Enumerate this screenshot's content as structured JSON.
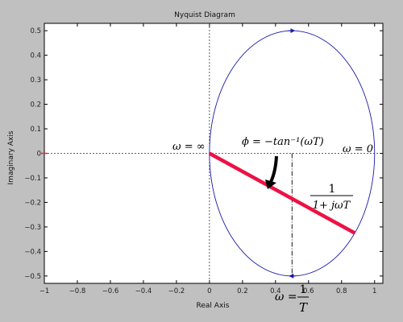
{
  "chart_data": {
    "type": "line",
    "title": "Nyquist Diagram",
    "xlabel": "Real Axis",
    "ylabel": "Imaginary Axis",
    "xlim": [
      -1,
      1.05
    ],
    "ylim": [
      -0.53,
      0.53
    ],
    "x_ticks": [
      -1,
      -0.8,
      -0.6,
      -0.4,
      -0.2,
      0,
      0.2,
      0.4,
      0.6,
      0.8,
      1
    ],
    "x_tick_labels": [
      "−1",
      "−0.8",
      "−0.6",
      "−0.4",
      "−0.2",
      "0",
      "0.2",
      "0.4",
      "0.6",
      "0.8",
      "1"
    ],
    "y_ticks": [
      0.5,
      0.4,
      0.3,
      0.2,
      0.1,
      0,
      -0.1,
      -0.2,
      -0.3,
      -0.4,
      -0.5
    ],
    "y_tick_labels": [
      "0.5",
      "0.4",
      "0.3",
      "0.2",
      "0.1",
      "0",
      "−0.1",
      "−0.2",
      "−0.3",
      "−0.4",
      "−0.5"
    ],
    "grid": false,
    "series": [
      {
        "kind": "circle",
        "center": [
          0.5,
          0
        ],
        "radius": 0.5,
        "color": "#1a1aaa"
      }
    ],
    "critical_point": {
      "x": -1,
      "y": 0,
      "color": "#ff2020"
    },
    "phasor": {
      "from": [
        0,
        0
      ],
      "to": [
        0.88,
        -0.325
      ],
      "color": "#ee1144"
    },
    "dashed_axes": {
      "color": "#333333"
    },
    "annotations": {
      "omega_inf": "ω = ∞",
      "omega_zero": "ω = 0",
      "phase": "ϕ = −tan⁻¹(ωT)",
      "magnitude_num": "1",
      "magnitude_den": "1+ jωT",
      "omega_eq": "ω =",
      "omega_num": "1",
      "omega_den": "T"
    }
  }
}
